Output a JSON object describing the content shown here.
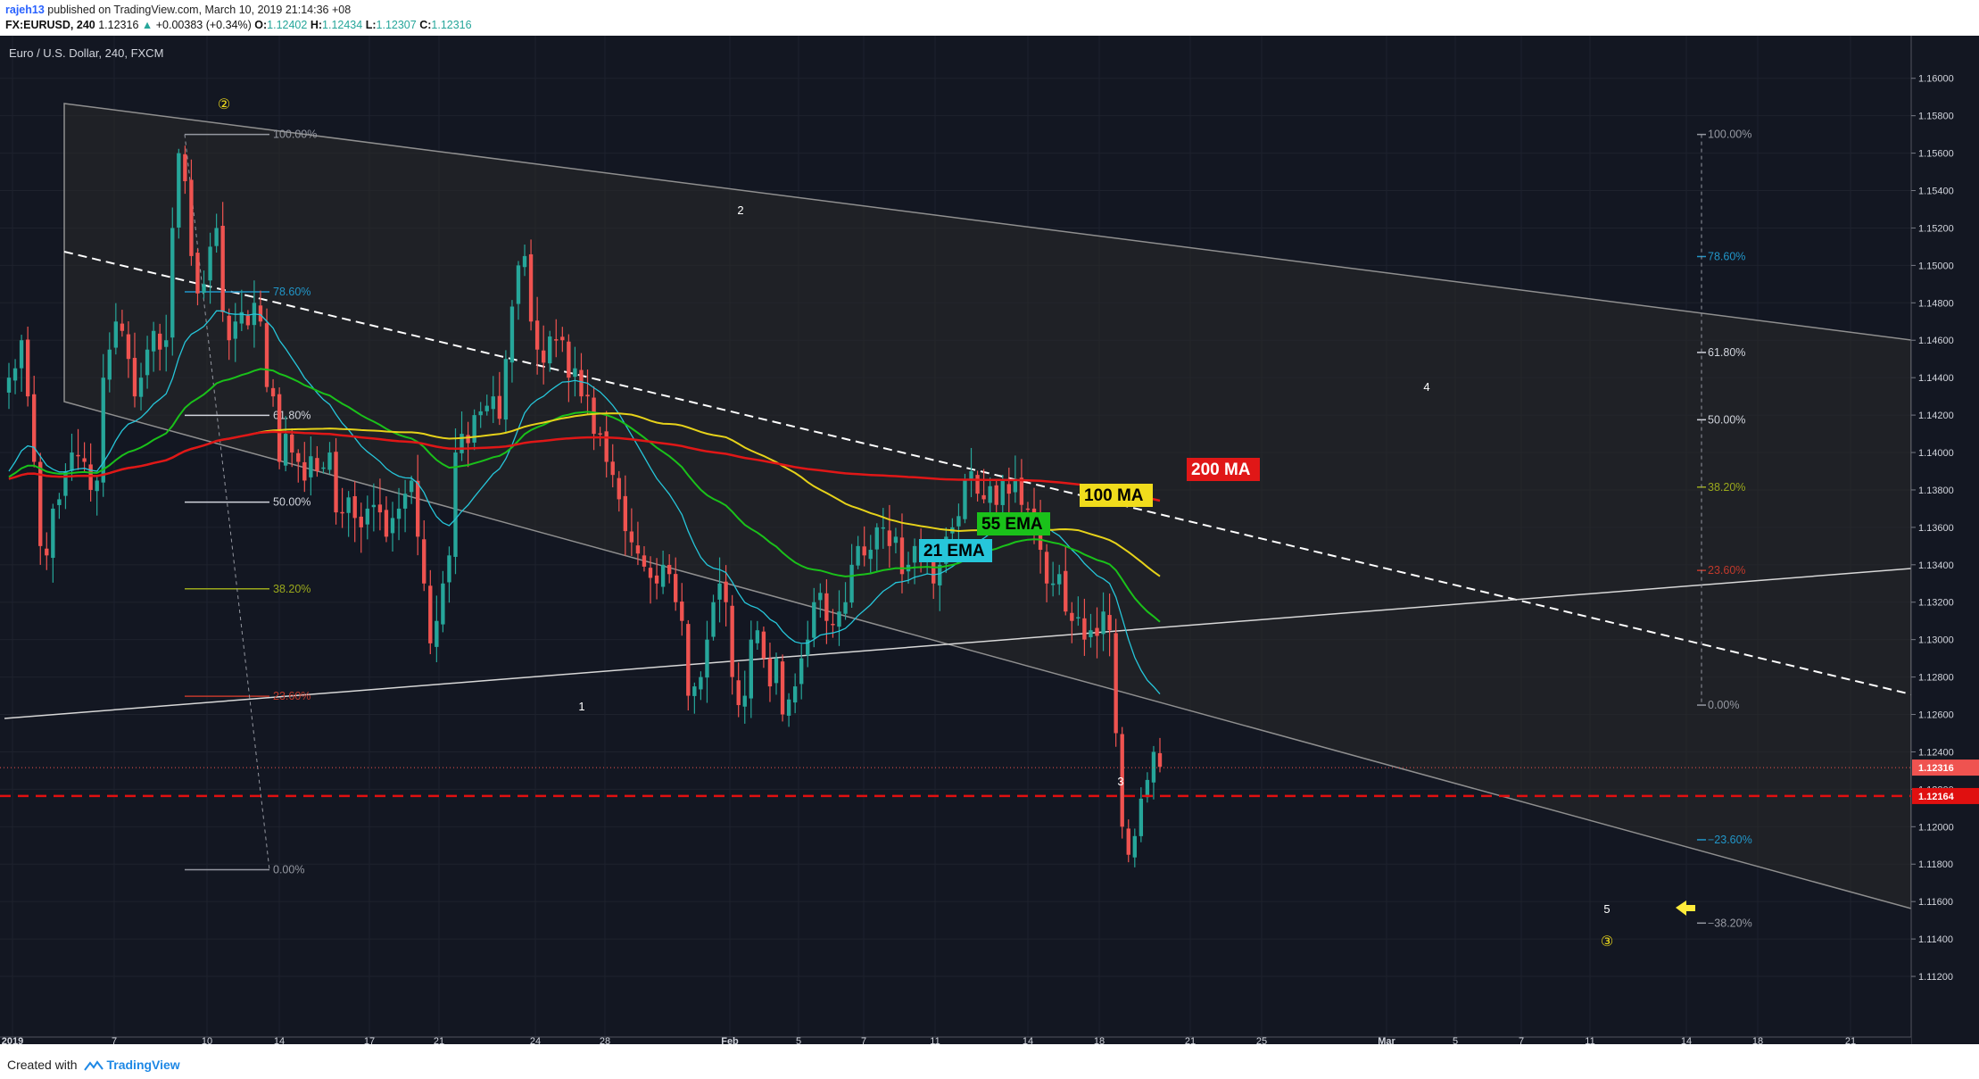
{
  "header": {
    "user": "rajeh13",
    "published": " published on TradingView.com, March 10, 2019 21:14:36 +08",
    "symbol": "FX:EURUSD, 240",
    "last": "1.12316",
    "change": "+0.00383 (+0.34%)",
    "o_label": "O:",
    "o": "1.12402",
    "h_label": "H:",
    "h": "1.12434",
    "l_label": "L:",
    "l": "1.12307",
    "c_label": "C:",
    "c": "1.12316"
  },
  "chart_title": "Euro / U.S. Dollar, 240, FXCM",
  "footer": {
    "created": "Created with",
    "brand": "TradingView"
  },
  "colors": {
    "background": "#131722",
    "bull": "#26a69a",
    "bear": "#ef5350",
    "ema21": "#26c6da",
    "ema55": "#1ac11a",
    "ma100": "#e6d21a",
    "ma200": "#e01717"
  },
  "chart_data": {
    "type": "candlestick",
    "ylim": [
      1.111,
      1.1618
    ],
    "y_ticks": [
      "1.16000",
      "1.15800",
      "1.15600",
      "1.15400",
      "1.15200",
      "1.15000",
      "1.14800",
      "1.14600",
      "1.14400",
      "1.14200",
      "1.14000",
      "1.13800",
      "1.13600",
      "1.13400",
      "1.13200",
      "1.13000",
      "1.12800",
      "1.12600",
      "1.12400",
      "1.12200",
      "1.12000",
      "1.11800",
      "1.11600",
      "1.11400",
      "1.11200"
    ],
    "x_ticks": [
      "2019",
      "7",
      "10",
      "14",
      "17",
      "21",
      "24",
      "28",
      "Feb",
      "5",
      "7",
      "11",
      "14",
      "18",
      "21",
      "25",
      "Mar",
      "5",
      "7",
      "11",
      "14",
      "18",
      "21"
    ],
    "price_badges": [
      {
        "label": "1.12316",
        "value": 1.12316,
        "color": "#ef5350"
      },
      {
        "label": "1.12164",
        "value": 1.12164,
        "color": "#e01010"
      }
    ],
    "indicator_labels": [
      {
        "text": "200 MA",
        "color": "#e01717",
        "text_color": "#ffffff"
      },
      {
        "text": "100 MA",
        "color": "#f0dc1c",
        "text_color": "#000000"
      },
      {
        "text": "55 EMA",
        "color": "#1ac11a",
        "text_color": "#000000"
      },
      {
        "text": "21 EMA",
        "color": "#26c6da",
        "text_color": "#000000"
      }
    ],
    "fib_left": [
      {
        "label": "100.00%",
        "color": "#9598a1"
      },
      {
        "label": "78.60%",
        "color": "#2196c8"
      },
      {
        "label": "61.80%",
        "color": "#d1d4dc"
      },
      {
        "label": "50.00%",
        "color": "#d1d4dc"
      },
      {
        "label": "38.20%",
        "color": "#9aa81c"
      },
      {
        "label": "23.60%",
        "color": "#c0392b"
      },
      {
        "label": "0.00%",
        "color": "#9598a1"
      }
    ],
    "fib_right": [
      {
        "label": "100.00%",
        "color": "#9598a1"
      },
      {
        "label": "78.60%",
        "color": "#2196c8"
      },
      {
        "label": "61.80%",
        "color": "#d1d4dc"
      },
      {
        "label": "50.00%",
        "color": "#d1d4dc"
      },
      {
        "label": "38.20%",
        "color": "#9aa81c"
      },
      {
        "label": "23.60%",
        "color": "#c0392b"
      },
      {
        "label": "0.00%",
        "color": "#9598a1"
      },
      {
        "label": "−23.60%",
        "color": "#2196c8"
      },
      {
        "label": "−38.20%",
        "color": "#9598a1"
      }
    ],
    "wave_labels": [
      "②",
      "2",
      "1",
      "3",
      "4",
      "5",
      "③"
    ],
    "closes": [
      1.144,
      1.1445,
      1.146,
      1.143,
      1.1395,
      1.135,
      1.1345,
      1.137,
      1.1375,
      1.139,
      1.14,
      1.1398,
      1.1395,
      1.138,
      1.1385,
      1.144,
      1.1455,
      1.147,
      1.1465,
      1.145,
      1.143,
      1.144,
      1.1455,
      1.1465,
      1.1455,
      1.146,
      1.152,
      1.156,
      1.1545,
      1.1505,
      1.1485,
      1.149,
      1.151,
      1.152,
      1.1475,
      1.146,
      1.147,
      1.1475,
      1.1468,
      1.148,
      1.147,
      1.1435,
      1.143,
      1.1395,
      1.141,
      1.14,
      1.1395,
      1.1385,
      1.1398,
      1.139,
      1.1392,
      1.14,
      1.1368,
      1.1368,
      1.1376,
      1.1365,
      1.136,
      1.137,
      1.1372,
      1.1368,
      1.1355,
      1.1365,
      1.137,
      1.1378,
      1.1385,
      1.1355,
      1.133,
      1.1298,
      1.131,
      1.133,
      1.1345,
      1.14,
      1.141,
      1.1405,
      1.142,
      1.1422,
      1.1425,
      1.143,
      1.1418,
      1.145,
      1.1478,
      1.15,
      1.1505,
      1.147,
      1.1455,
      1.1448,
      1.1462,
      1.146,
      1.146,
      1.144,
      1.1445,
      1.143,
      1.143,
      1.141,
      1.141,
      1.1395,
      1.1388,
      1.1375,
      1.1358,
      1.1352,
      1.1346,
      1.1339,
      1.1333,
      1.133,
      1.134,
      1.1335,
      1.132,
      1.131,
      1.127,
      1.1275,
      1.128,
      1.13,
      1.132,
      1.133,
      1.132,
      1.128,
      1.1265,
      1.127,
      1.13,
      1.1305,
      1.129,
      1.1275,
      1.129,
      1.126,
      1.1268,
      1.1275,
      1.129,
      1.13,
      1.132,
      1.1325,
      1.131,
      1.1308,
      1.1315,
      1.132,
      1.134,
      1.135,
      1.1345,
      1.1348,
      1.136,
      1.136,
      1.135,
      1.1355,
      1.1335,
      1.134,
      1.135,
      1.1342,
      1.1345,
      1.133,
      1.134,
      1.1355,
      1.136,
      1.1366,
      1.1385,
      1.139,
      1.1378,
      1.1375,
      1.1382,
      1.1372,
      1.1385,
      1.1378,
      1.1385,
      1.1372,
      1.137,
      1.136,
      1.1348,
      1.133,
      1.133,
      1.1335,
      1.1315,
      1.131,
      1.1312,
      1.13,
      1.1305,
      1.1302,
      1.1315,
      1.1305,
      1.125,
      1.12,
      1.1185,
      1.1195,
      1.1215,
      1.1225,
      1.124,
      1.1232
    ]
  }
}
